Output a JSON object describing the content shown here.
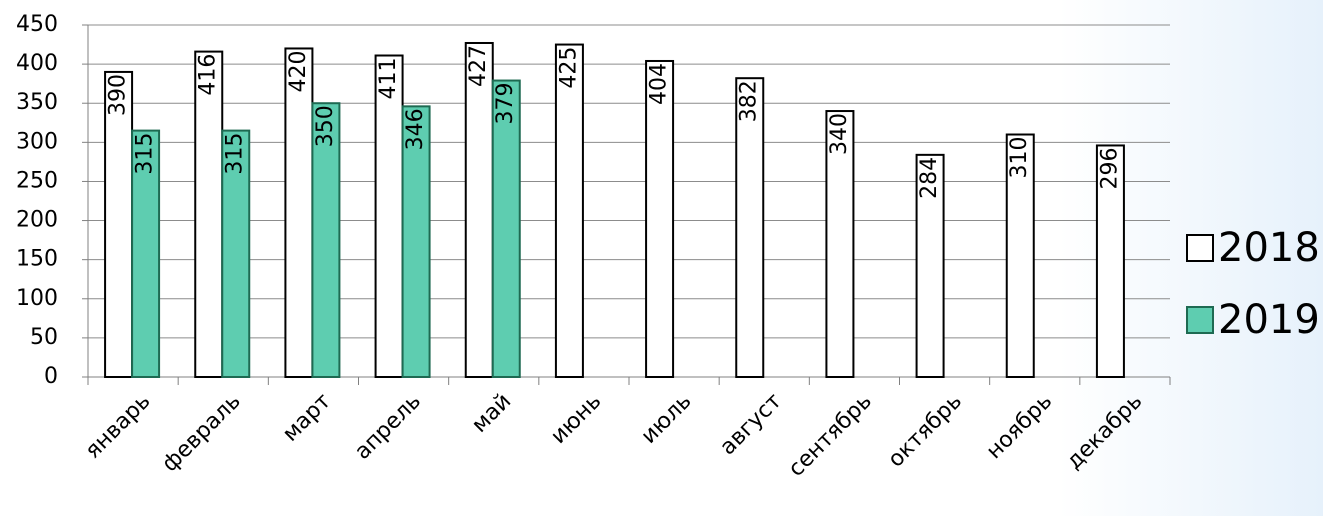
{
  "chart_data": {
    "type": "bar",
    "categories": [
      "январь",
      "февраль",
      "март",
      "апрель",
      "май",
      "июнь",
      "июль",
      "август",
      "сентябрь",
      "октябрь",
      "ноябрь",
      "декабрь"
    ],
    "series": [
      {
        "name": "2018",
        "color": "#ffffff",
        "values": [
          390,
          416,
          420,
          411,
          427,
          425,
          404,
          382,
          340,
          284,
          310,
          296
        ]
      },
      {
        "name": "2019",
        "color": "#5ecdb0",
        "values": [
          315,
          315,
          350,
          346,
          379,
          null,
          null,
          null,
          null,
          null,
          null,
          null
        ]
      }
    ],
    "ylim": [
      0,
      450
    ],
    "yticks": [
      0,
      50,
      100,
      150,
      200,
      250,
      300,
      350,
      400,
      450
    ],
    "grid": true,
    "legend": "right"
  }
}
